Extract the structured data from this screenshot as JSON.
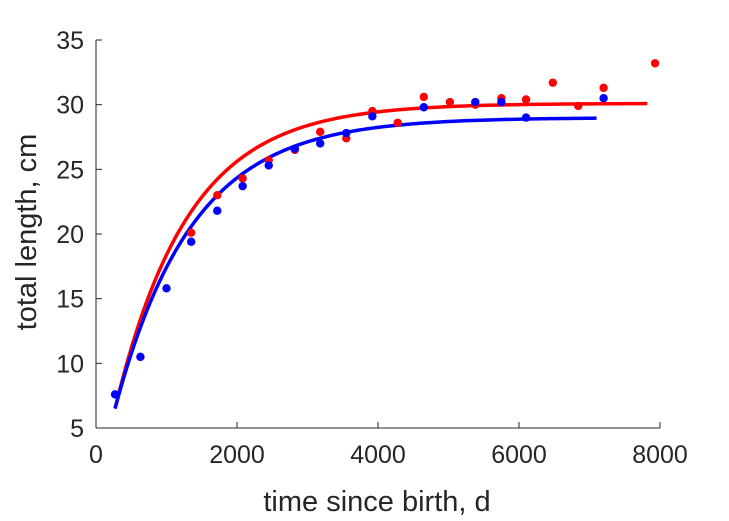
{
  "chart_data": {
    "type": "scatter",
    "xlabel": "time since birth, d",
    "ylabel": "total length, cm",
    "xlim": [
      0,
      8000
    ],
    "ylim": [
      5,
      35
    ],
    "xticks": [
      0,
      2000,
      4000,
      6000,
      8000
    ],
    "yticks": [
      5,
      10,
      15,
      20,
      25,
      30,
      35
    ],
    "xtick_labels": [
      "0",
      "2000",
      "4000",
      "6000",
      "8000"
    ],
    "ytick_labels": [
      "5",
      "10",
      "15",
      "20",
      "25",
      "30",
      "35"
    ],
    "grid": false,
    "legend": "none",
    "series": [
      {
        "color": "#ff0000",
        "points": [
          [
            1350,
            20.1
          ],
          [
            1720,
            23.0
          ],
          [
            2080,
            24.3
          ],
          [
            2450,
            25.7
          ],
          [
            2820,
            26.5
          ],
          [
            3180,
            27.9
          ],
          [
            3550,
            27.4
          ],
          [
            3920,
            29.5
          ],
          [
            4280,
            28.6
          ],
          [
            4650,
            30.6
          ],
          [
            5020,
            30.2
          ],
          [
            5380,
            30.0
          ],
          [
            5750,
            30.5
          ],
          [
            6100,
            30.4
          ],
          [
            6480,
            31.7
          ],
          [
            6840,
            29.9
          ],
          [
            7200,
            31.3
          ],
          [
            7930,
            33.2
          ]
        ],
        "fit": {
          "type": "von_bertalanffy",
          "Linf": 30.1,
          "L0": 6.5,
          "x0": 270,
          "k": 0.00096,
          "x_end": 7820
        }
      },
      {
        "color": "#0000ff",
        "points": [
          [
            270,
            7.6
          ],
          [
            630,
            10.5
          ],
          [
            1000,
            15.8
          ],
          [
            1350,
            19.4
          ],
          [
            1720,
            21.8
          ],
          [
            2080,
            23.7
          ],
          [
            2450,
            25.3
          ],
          [
            2820,
            26.6
          ],
          [
            3180,
            27.0
          ],
          [
            3550,
            27.8
          ],
          [
            3920,
            29.1
          ],
          [
            4650,
            29.8
          ],
          [
            5380,
            30.2
          ],
          [
            5750,
            30.2
          ],
          [
            6100,
            29.0
          ],
          [
            7200,
            30.5
          ]
        ],
        "fit": {
          "type": "von_bertalanffy",
          "Linf": 29.0,
          "L0": 6.5,
          "x0": 270,
          "k": 0.00091,
          "x_end": 7100
        }
      }
    ]
  }
}
